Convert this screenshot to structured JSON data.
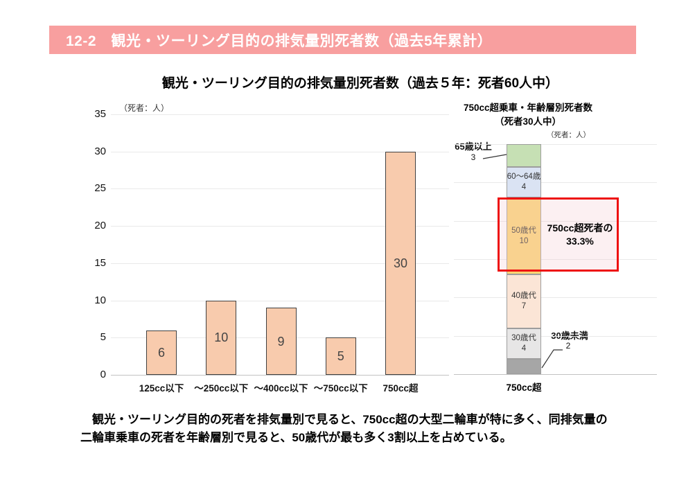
{
  "header": {
    "title": "12-2　観光・ツーリング目的の排気量別死者数（過去5年累計）",
    "bg_color": "#f89f9f"
  },
  "main_title": "観光・ツーリング目的の排気量別死者数（過去５年：死者60人中）",
  "chart_data": [
    {
      "type": "bar",
      "title": "観光・ツーリング目的の排気量別死者数（過去５年：死者60人中）",
      "unit_label": "（死者：人）",
      "categories": [
        "125cc以下",
        "～250cc以下",
        "～400cc以下",
        "～750cc以下",
        "750cc超"
      ],
      "values": [
        6,
        10,
        9,
        5,
        30
      ],
      "ylim": [
        0,
        35
      ],
      "ytick_interval": 5,
      "grid": true,
      "legend": "none",
      "bar_color": "#f8cbad",
      "bar_border_color": "#404040"
    },
    {
      "type": "bar",
      "subtype": "stacked-single-column",
      "title": "750cc超乗車・年齢層別死者数",
      "subtitle": "（死者30人中）",
      "unit_label": "（死者：人）",
      "category": "750cc超",
      "total": 30,
      "ylim": [
        0,
        30
      ],
      "ytick_interval": 5,
      "grid": true,
      "segments_top_to_bottom": [
        {
          "label": "65歳以上",
          "value": 3,
          "color": "#c6e0b4",
          "label_position": "outside-left"
        },
        {
          "label": "60～64歳",
          "value": 4,
          "color": "#dae3f3",
          "label_position": "inside"
        },
        {
          "label": "50歳代",
          "value": 10,
          "color": "#fbd472",
          "label_position": "inside",
          "highlighted": true
        },
        {
          "label": "40歳代",
          "value": 7,
          "color": "#fbe5d6",
          "label_position": "inside"
        },
        {
          "label": "30歳代",
          "value": 4,
          "color": "#e7e6e6",
          "label_position": "inside"
        },
        {
          "label": "30歳未満",
          "value": 2,
          "color": "#a6a6a6",
          "label_position": "outside-right"
        }
      ],
      "annotation": {
        "line1": "750cc超死者の",
        "line2": "33.3%",
        "border_color": "#ee1111"
      }
    }
  ],
  "footer": {
    "line1": "　観光・ツーリング目的の死者を排気量別で見ると、750cc超の大型二輪車が特に多く、同排気量の",
    "line2": "二輪車乗車の死者を年齢層別で見ると、50歳代が最も多く3割以上を占めている。"
  }
}
